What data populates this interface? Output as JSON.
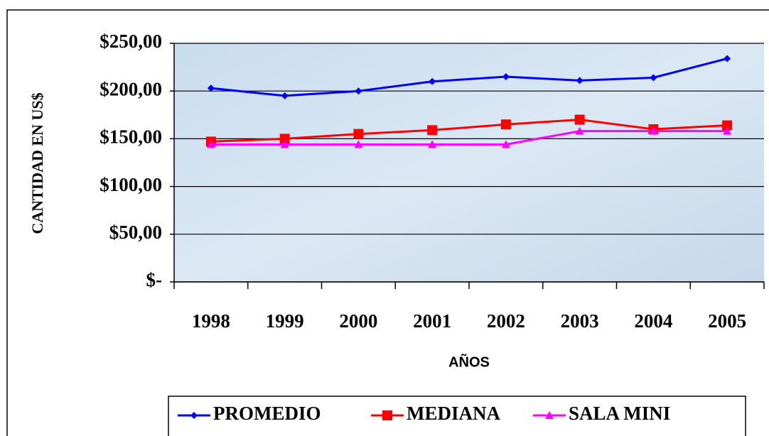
{
  "chart_data": {
    "type": "line",
    "y_label": "CANTIDAD EN US$",
    "x_label": "AÑOS",
    "categories": [
      "1998",
      "1999",
      "2000",
      "2001",
      "2002",
      "2003",
      "2004",
      "2005"
    ],
    "series": [
      {
        "name": "PROMEDIO",
        "color": "#0000ff",
        "marker": "diamond",
        "values": [
          203,
          195,
          200,
          210,
          215,
          211,
          214,
          234
        ]
      },
      {
        "name": "MEDIANA",
        "color": "#ff0000",
        "marker": "square",
        "values": [
          147,
          150,
          155,
          159,
          165,
          170,
          160,
          164
        ]
      },
      {
        "name": "SALA MINI",
        "color": "#ff00ff",
        "marker": "triangle",
        "values": [
          144,
          144,
          144,
          144,
          144,
          158,
          158,
          158
        ]
      }
    ],
    "ylim": [
      0,
      250
    ],
    "yticks": [
      {
        "value": 0,
        "label": "$-"
      },
      {
        "value": 50,
        "label": "$50,00"
      },
      {
        "value": 100,
        "label": "$100,00"
      },
      {
        "value": 150,
        "label": "$150,00"
      },
      {
        "value": 200,
        "label": "$200,00"
      },
      {
        "value": 250,
        "label": "$250,00"
      }
    ],
    "grid": true,
    "legend": "bottom"
  }
}
